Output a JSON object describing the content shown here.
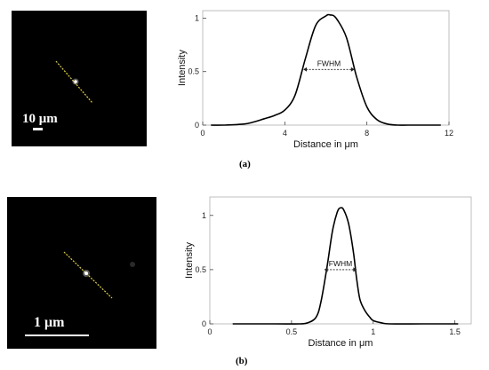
{
  "panels": [
    {
      "id": "a",
      "caption": "(a)",
      "micrograph": {
        "scale_bar_label": "10 μm"
      },
      "fwhm_label": "FWHM"
    },
    {
      "id": "b",
      "caption": "(b)",
      "micrograph": {
        "scale_bar_label": "1 μm"
      },
      "fwhm_label": "FWHM"
    }
  ],
  "chart_data": [
    {
      "type": "line",
      "xlabel": "Distance in μm",
      "ylabel": "Intensity",
      "xlim": [
        0,
        12
      ],
      "ylim": [
        0,
        1.07
      ],
      "xticks": [
        0,
        4,
        8,
        12
      ],
      "yticks": [
        0,
        0.5,
        1
      ],
      "xtick_labels": [
        "0",
        "4",
        "8",
        "12"
      ],
      "ytick_labels": [
        "0",
        "0.5",
        "1"
      ],
      "grid": false,
      "fwhm_marker": {
        "y": 0.52,
        "x_start": 4.9,
        "x_end": 7.4
      },
      "x": [
        0.4,
        1,
        2,
        2.5,
        3,
        3.5,
        4,
        4.5,
        5,
        5.5,
        6,
        6.2,
        6.5,
        7,
        7.5,
        8,
        8.5,
        9,
        9.5,
        10,
        11,
        11.6
      ],
      "y": [
        0,
        0,
        0.01,
        0.03,
        0.06,
        0.09,
        0.14,
        0.28,
        0.62,
        0.93,
        1.02,
        1.03,
        1.0,
        0.82,
        0.45,
        0.17,
        0.05,
        0.01,
        0,
        0,
        0,
        0
      ]
    },
    {
      "type": "line",
      "xlabel": "Distance in μm",
      "ylabel": "Intensity",
      "xlim": [
        0,
        1.6
      ],
      "ylim": [
        0,
        1.17
      ],
      "xticks": [
        0,
        0.5,
        1,
        1.5
      ],
      "yticks": [
        0,
        0.5,
        1
      ],
      "xtick_labels": [
        "0",
        "0.5",
        "1",
        "1.5"
      ],
      "ytick_labels": [
        "0",
        "0.5",
        "1"
      ],
      "grid": false,
      "fwhm_marker": {
        "y": 0.5,
        "x_start": 0.7,
        "x_end": 0.9
      },
      "x": [
        0.14,
        0.4,
        0.55,
        0.6,
        0.65,
        0.68,
        0.72,
        0.75,
        0.78,
        0.8,
        0.82,
        0.85,
        0.88,
        0.9,
        0.92,
        0.95,
        0.98,
        1.0,
        1.05,
        1.1,
        1.3,
        1.52
      ],
      "y": [
        0,
        0,
        0,
        0.01,
        0.06,
        0.2,
        0.55,
        0.85,
        1.03,
        1.07,
        1.05,
        0.92,
        0.65,
        0.4,
        0.22,
        0.12,
        0.06,
        0.03,
        0.01,
        0,
        0,
        0
      ]
    }
  ]
}
